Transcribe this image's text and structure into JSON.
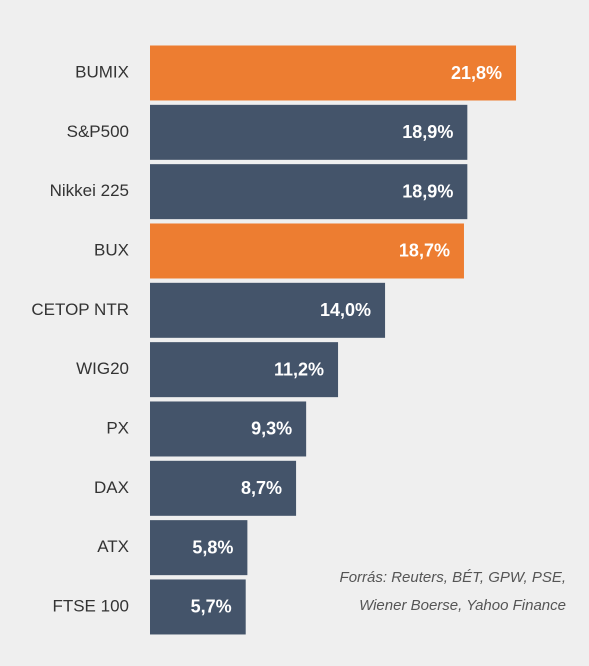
{
  "chart_data": {
    "type": "bar",
    "orientation": "horizontal",
    "categories": [
      "BUMIX",
      "S&P500",
      "Nikkei 225",
      "BUX",
      "CETOP NTR",
      "WIG20",
      "PX",
      "DAX",
      "ATX",
      "FTSE 100"
    ],
    "values": [
      21.8,
      18.9,
      18.9,
      18.7,
      14.0,
      11.2,
      9.3,
      8.7,
      5.8,
      5.7
    ],
    "value_labels": [
      "21,8%",
      "18,9%",
      "18,9%",
      "18,7%",
      "14,0%",
      "11,2%",
      "9,3%",
      "8,7%",
      "5,8%",
      "5,7%"
    ],
    "colors": [
      "#ed7d31",
      "#44546a",
      "#44546a",
      "#ed7d31",
      "#44546a",
      "#44546a",
      "#44546a",
      "#44546a",
      "#44546a",
      "#44546a"
    ],
    "source": [
      "Forrás: Reuters, BÉT, GPW, PSE,",
      "Wiener Boerse, Yahoo Finance"
    ]
  }
}
